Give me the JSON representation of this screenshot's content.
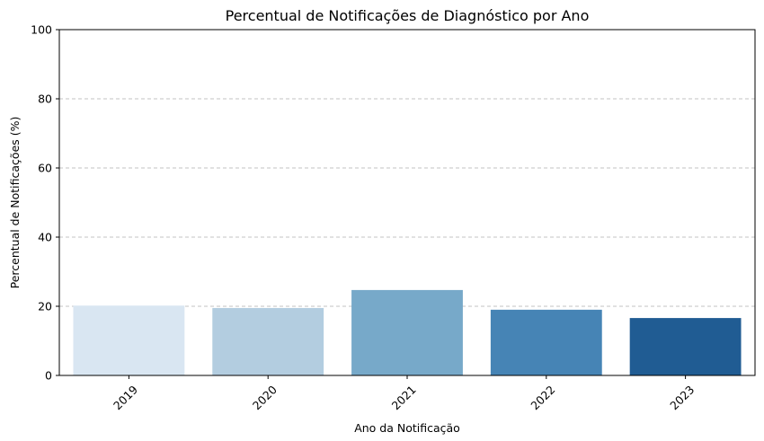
{
  "chart_data": {
    "type": "bar",
    "title": "Percentual de Notificações de Diagnóstico por Ano",
    "xlabel": "Ano da Notificação",
    "ylabel": "Percentual de Notificações (%)",
    "categories": [
      "2019",
      "2020",
      "2021",
      "2022",
      "2023"
    ],
    "values": [
      20.2,
      19.5,
      24.7,
      19.0,
      16.6
    ],
    "colors": [
      "#d9e6f2",
      "#b3cde0",
      "#77a9c9",
      "#4684b5",
      "#205c93"
    ],
    "ylim": [
      0,
      100
    ],
    "yticks": [
      "0",
      "20",
      "40",
      "60",
      "80",
      "100"
    ],
    "grid": "y-dashed",
    "legend": "none"
  }
}
